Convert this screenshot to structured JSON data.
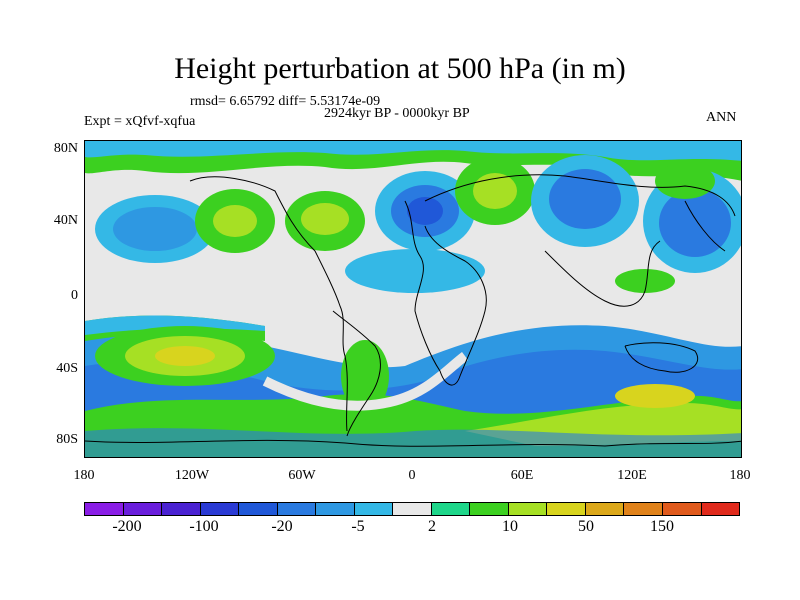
{
  "title": "Height perturbation at 500 hPa (in m)",
  "rmsd_text": "rmsd= 6.65792 diff= 5.53174e-09",
  "period_text": "2924kyr BP - 0000kyr BP",
  "expt_text": "Expt = xQfvf-xqfua",
  "season_text": "ANN",
  "y_ticks": [
    "80N",
    "40N",
    "0",
    "40S",
    "80S"
  ],
  "x_ticks": [
    "180",
    "120W",
    "60W",
    "0",
    "60E",
    "120E",
    "180"
  ],
  "colorbar": {
    "colors": [
      "#8a1de6",
      "#6a1edc",
      "#4a22d2",
      "#2a3ad4",
      "#2058d8",
      "#2a7ae0",
      "#2e98e2",
      "#34b8e6",
      "#e8e8e8",
      "#1ed68a",
      "#3cd020",
      "#a6e024",
      "#d8d41e",
      "#dca81a",
      "#e0821a",
      "#e05a1c",
      "#e02a1c"
    ],
    "labels": [
      "-200",
      "-100",
      "-20",
      "-5",
      "2",
      "10",
      "50",
      "150"
    ]
  }
}
